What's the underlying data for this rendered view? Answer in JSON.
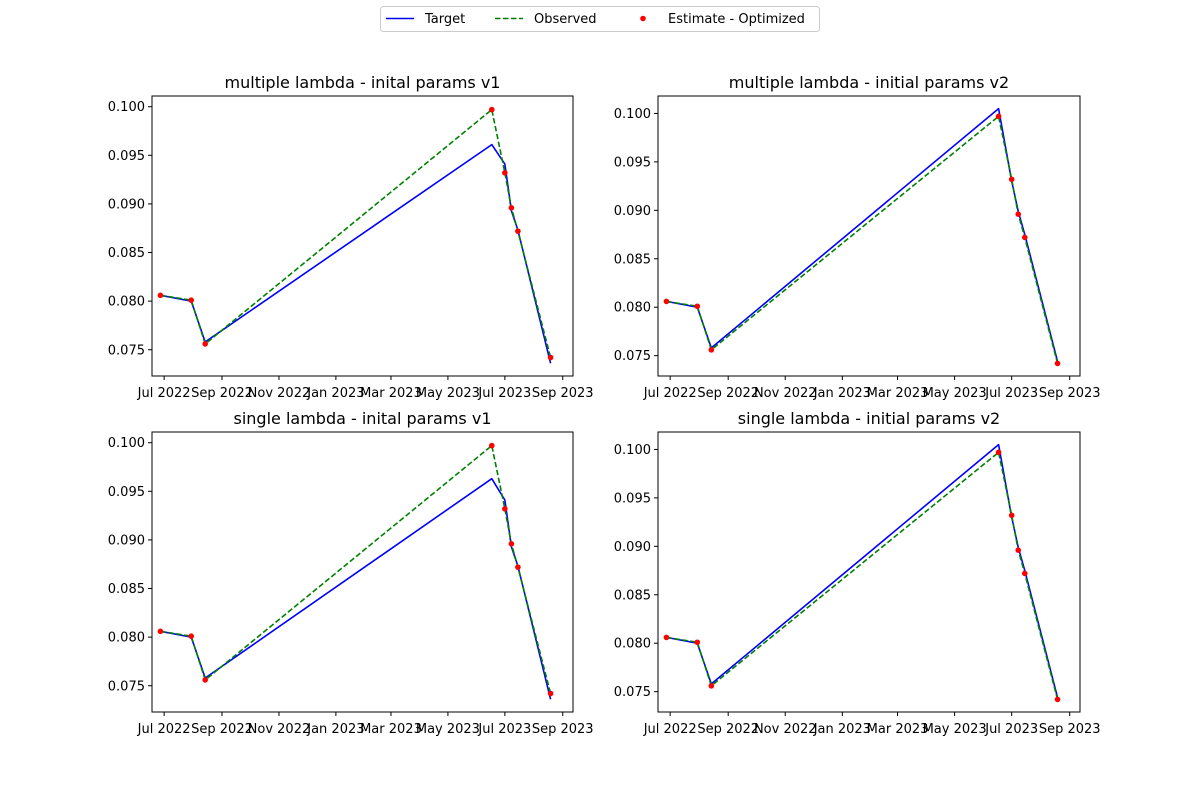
{
  "legend": {
    "items": [
      {
        "label": "Target",
        "color": "#0000ff",
        "style": "solid"
      },
      {
        "label": "Observed",
        "color": "#008000",
        "style": "dashed"
      },
      {
        "label": "Estimate - Optimized",
        "color": "#ff0000",
        "style": "dot"
      }
    ],
    "placement": "top-center"
  },
  "chart_data": [
    {
      "type": "line",
      "title": "multiple lambda - inital params v1",
      "x_ticks": [
        "2022-07-01",
        "2022-09-01",
        "2022-11-01",
        "2023-01-01",
        "2023-03-01",
        "2023-05-01",
        "2023-07-01",
        "2023-09-01"
      ],
      "x_tick_labels": [
        "Jul 2022",
        "Sep 2022",
        "Nov 2022",
        "Jan 2023",
        "Mar 2023",
        "May 2023",
        "Jul 2023",
        "Sep 2023"
      ],
      "xlim": [
        "2022-06-18",
        "2023-09-12"
      ],
      "ylim": [
        0.0723,
        0.1011
      ],
      "y_ticks": [
        0.075,
        0.08,
        0.085,
        0.09,
        0.095,
        0.1
      ],
      "y_tick_labels": [
        "0.075",
        "0.080",
        "0.085",
        "0.090",
        "0.095",
        "0.100"
      ],
      "x": [
        "2022-06-27",
        "2022-07-30",
        "2022-08-14",
        "2023-06-17",
        "2023-07-01",
        "2023-07-08",
        "2023-07-15",
        "2023-08-19"
      ],
      "series": [
        {
          "name": "Target",
          "values": [
            0.0806,
            0.08,
            0.0758,
            0.0961,
            0.0941,
            0.0893,
            0.0873,
            0.0736
          ]
        },
        {
          "name": "Observed",
          "values": [
            0.0806,
            0.0801,
            0.0756,
            0.0997,
            0.0932,
            0.0896,
            0.0872,
            0.0742
          ]
        },
        {
          "name": "Estimate - Optimized",
          "values": [
            0.0806,
            0.0801,
            0.0756,
            0.0997,
            0.0932,
            0.0896,
            0.0872,
            0.0742
          ]
        }
      ]
    },
    {
      "type": "line",
      "title": "multiple lambda - initial params v2",
      "x_ticks": [
        "2022-07-01",
        "2022-09-01",
        "2022-11-01",
        "2023-01-01",
        "2023-03-01",
        "2023-05-01",
        "2023-07-01",
        "2023-09-01"
      ],
      "x_tick_labels": [
        "Jul 2022",
        "Sep 2022",
        "Nov 2022",
        "Jan 2023",
        "Mar 2023",
        "May 2023",
        "Jul 2023",
        "Sep 2023"
      ],
      "xlim": [
        "2022-06-18",
        "2023-09-12"
      ],
      "ylim": [
        0.0729,
        0.1018
      ],
      "y_ticks": [
        0.075,
        0.08,
        0.085,
        0.09,
        0.095,
        0.1
      ],
      "y_tick_labels": [
        "0.075",
        "0.080",
        "0.085",
        "0.090",
        "0.095",
        "0.100"
      ],
      "x": [
        "2022-06-27",
        "2022-07-30",
        "2022-08-14",
        "2023-06-17",
        "2023-07-01",
        "2023-07-08",
        "2023-07-15",
        "2023-08-19"
      ],
      "series": [
        {
          "name": "Target",
          "values": [
            0.0806,
            0.08,
            0.0758,
            0.1005,
            0.093,
            0.0899,
            0.0875,
            0.0744
          ]
        },
        {
          "name": "Observed",
          "values": [
            0.0806,
            0.0801,
            0.0756,
            0.0997,
            0.0932,
            0.0896,
            0.0872,
            0.0742
          ]
        },
        {
          "name": "Estimate - Optimized",
          "values": [
            0.0806,
            0.0801,
            0.0756,
            0.0997,
            0.0932,
            0.0896,
            0.0872,
            0.0742
          ]
        }
      ]
    },
    {
      "type": "line",
      "title": "single lambda - inital params v1",
      "x_ticks": [
        "2022-07-01",
        "2022-09-01",
        "2022-11-01",
        "2023-01-01",
        "2023-03-01",
        "2023-05-01",
        "2023-07-01",
        "2023-09-01"
      ],
      "x_tick_labels": [
        "Jul 2022",
        "Sep 2022",
        "Nov 2022",
        "Jan 2023",
        "Mar 2023",
        "May 2023",
        "Jul 2023",
        "Sep 2023"
      ],
      "xlim": [
        "2022-06-18",
        "2023-09-12"
      ],
      "ylim": [
        0.0723,
        0.1011
      ],
      "y_ticks": [
        0.075,
        0.08,
        0.085,
        0.09,
        0.095,
        0.1
      ],
      "y_tick_labels": [
        "0.075",
        "0.080",
        "0.085",
        "0.090",
        "0.095",
        "0.100"
      ],
      "x": [
        "2022-06-27",
        "2022-07-30",
        "2022-08-14",
        "2023-06-17",
        "2023-07-01",
        "2023-07-08",
        "2023-07-15",
        "2023-08-19"
      ],
      "series": [
        {
          "name": "Target",
          "values": [
            0.0806,
            0.08,
            0.0758,
            0.0963,
            0.0941,
            0.0893,
            0.0873,
            0.0736
          ]
        },
        {
          "name": "Observed",
          "values": [
            0.0806,
            0.0801,
            0.0756,
            0.0997,
            0.0932,
            0.0896,
            0.0872,
            0.0742
          ]
        },
        {
          "name": "Estimate - Optimized",
          "values": [
            0.0806,
            0.0801,
            0.0756,
            0.0997,
            0.0932,
            0.0896,
            0.0872,
            0.0742
          ]
        }
      ]
    },
    {
      "type": "line",
      "title": "single lambda - initial params v2",
      "x_ticks": [
        "2022-07-01",
        "2022-09-01",
        "2022-11-01",
        "2023-01-01",
        "2023-03-01",
        "2023-05-01",
        "2023-07-01",
        "2023-09-01"
      ],
      "x_tick_labels": [
        "Jul 2022",
        "Sep 2022",
        "Nov 2022",
        "Jan 2023",
        "Mar 2023",
        "May 2023",
        "Jul 2023",
        "Sep 2023"
      ],
      "xlim": [
        "2022-06-18",
        "2023-09-12"
      ],
      "ylim": [
        0.0729,
        0.1018
      ],
      "y_ticks": [
        0.075,
        0.08,
        0.085,
        0.09,
        0.095,
        0.1
      ],
      "y_tick_labels": [
        "0.075",
        "0.080",
        "0.085",
        "0.090",
        "0.095",
        "0.100"
      ],
      "x": [
        "2022-06-27",
        "2022-07-30",
        "2022-08-14",
        "2023-06-17",
        "2023-07-01",
        "2023-07-08",
        "2023-07-15",
        "2023-08-19"
      ],
      "series": [
        {
          "name": "Target",
          "values": [
            0.0806,
            0.08,
            0.0758,
            0.1005,
            0.093,
            0.0899,
            0.0875,
            0.0744
          ]
        },
        {
          "name": "Observed",
          "values": [
            0.0806,
            0.0801,
            0.0756,
            0.0997,
            0.0932,
            0.0896,
            0.0872,
            0.0742
          ]
        },
        {
          "name": "Estimate - Optimized",
          "values": [
            0.0806,
            0.0801,
            0.0756,
            0.0997,
            0.0932,
            0.0896,
            0.0872,
            0.0742
          ]
        }
      ]
    }
  ]
}
